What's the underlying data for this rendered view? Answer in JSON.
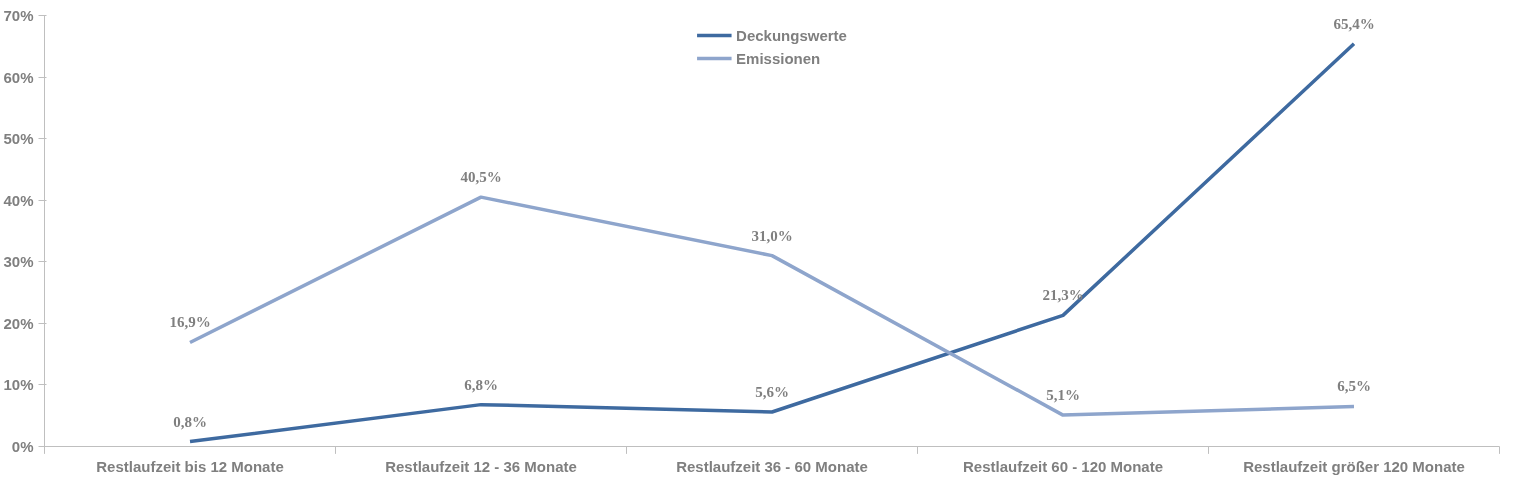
{
  "chart_data": {
    "type": "line",
    "categories": [
      "Restlaufzeit bis 12 Monate",
      "Restlaufzeit 12 - 36 Monate",
      "Restlaufzeit 36 - 60 Monate",
      "Restlaufzeit 60 - 120 Monate",
      "Restlaufzeit größer 120 Monate"
    ],
    "series": [
      {
        "name": "Deckungswerte",
        "color": "#3e6aa0",
        "values": [
          0.8,
          6.8,
          5.6,
          21.3,
          65.4
        ],
        "value_labels": [
          "0,8%",
          "6,8%",
          "5,6%",
          "21,3%",
          "65,4%"
        ]
      },
      {
        "name": "Emissionen",
        "color": "#8ea5cc",
        "values": [
          16.9,
          40.5,
          31.0,
          5.1,
          6.5
        ],
        "value_labels": [
          "16,9%",
          "40,5%",
          "31,0%",
          "5,1%",
          "6,5%"
        ]
      }
    ],
    "ylim": [
      0,
      70
    ],
    "yticks": [
      {
        "value": 0,
        "label": "0%"
      },
      {
        "value": 10,
        "label": "10%"
      },
      {
        "value": 20,
        "label": "20%"
      },
      {
        "value": 30,
        "label": "30%"
      },
      {
        "value": 40,
        "label": "40%"
      },
      {
        "value": 50,
        "label": "50%"
      },
      {
        "value": 60,
        "label": "60%"
      },
      {
        "value": 70,
        "label": "70%"
      }
    ],
    "grid": false,
    "legend": "top",
    "marker": "none",
    "line_style": "solid"
  }
}
